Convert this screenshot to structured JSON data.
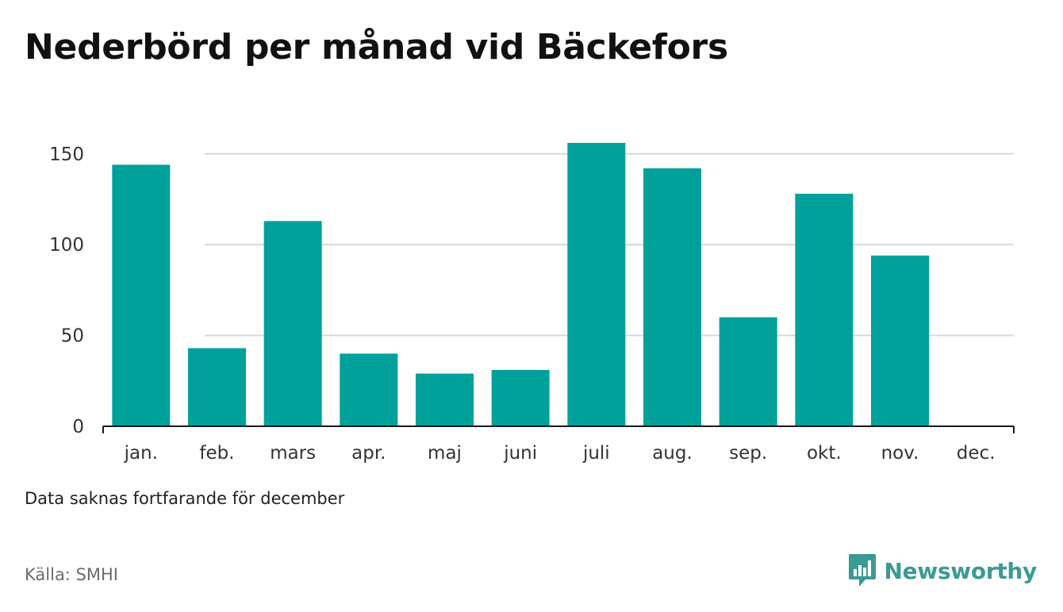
{
  "title": "Nederbörd per månad vid Bäckefors",
  "note": "Data saknas fortfarande för december",
  "source": "Källa: SMHI",
  "brand": {
    "name": "Newsworthy",
    "icon": "bar-chart-speech-bubble-icon",
    "color": "#3a9a94"
  },
  "colors": {
    "bar": "#00a19a",
    "grid": "#d9d9d9",
    "axis": "#1a1a1a"
  },
  "chart_data": {
    "type": "bar",
    "title": "Nederbörd per månad vid Bäckefors",
    "xlabel": "",
    "ylabel": "",
    "categories": [
      "jan.",
      "feb.",
      "mars",
      "apr.",
      "maj",
      "juni",
      "juli",
      "aug.",
      "sep.",
      "okt.",
      "nov.",
      "dec."
    ],
    "values": [
      144,
      43,
      113,
      40,
      29,
      31,
      156,
      142,
      60,
      128,
      94,
      null
    ],
    "ylim": [
      0,
      170
    ],
    "yticks": [
      0,
      50,
      100,
      150
    ],
    "grid": true,
    "legend": "none"
  }
}
